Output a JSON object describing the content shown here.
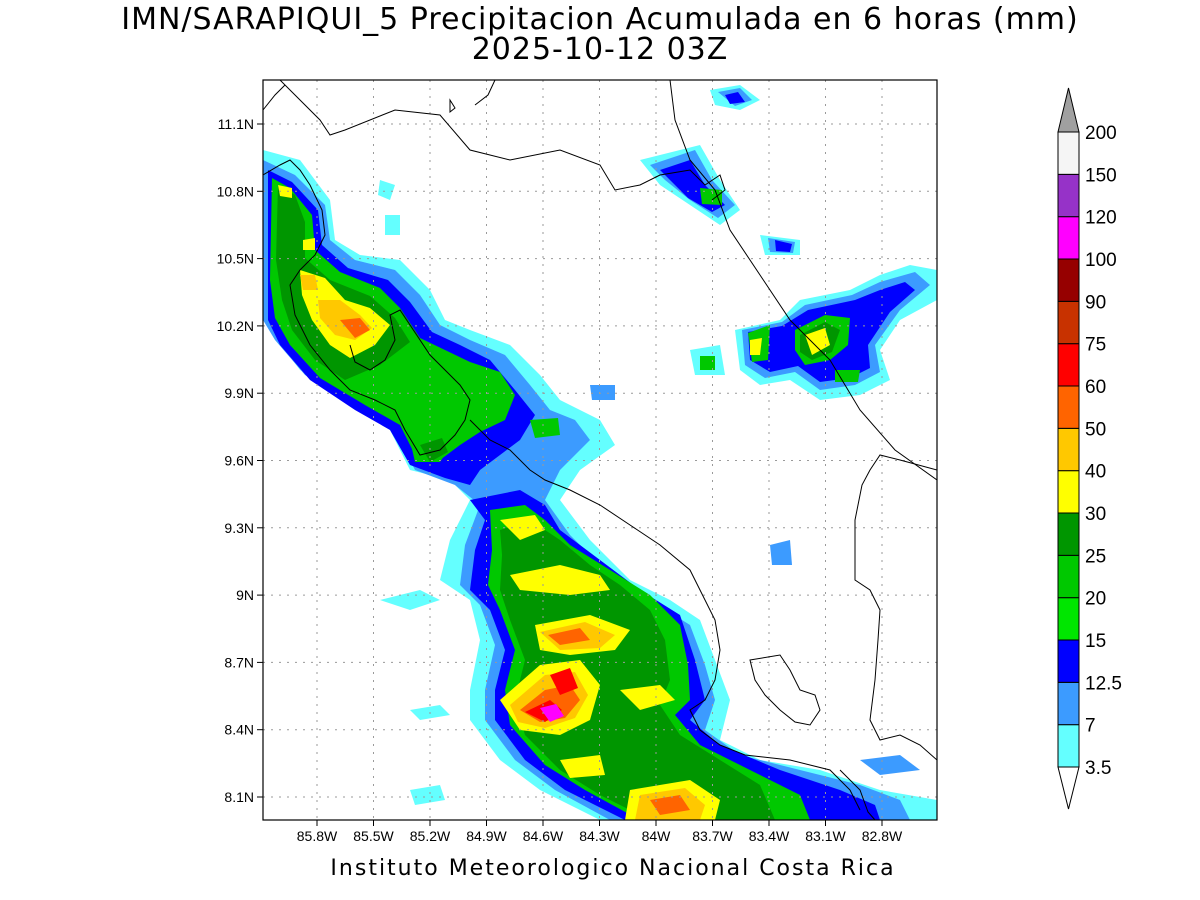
{
  "title": "IMN/SARAPIQUI_5 Precipitacion Acumulada en 6 horas (mm)",
  "subtitle": "2025-10-12 03Z",
  "credit": "Instituto Meteorologico Nacional Costa Rica",
  "map": {
    "lat_range": [
      8.0,
      11.3
    ],
    "lon_range": [
      -86.0,
      -83.0
    ],
    "lat_ticks": [
      {
        "value": 11.1,
        "label": "11.1N"
      },
      {
        "value": 10.8,
        "label": "10.8N"
      },
      {
        "value": 10.5,
        "label": "10.5N"
      },
      {
        "value": 10.2,
        "label": "10.2N"
      },
      {
        "value": 9.9,
        "label": "9.9N"
      },
      {
        "value": 9.6,
        "label": "9.6N"
      },
      {
        "value": 9.3,
        "label": "9.3N"
      },
      {
        "value": 9.0,
        "label": "9N"
      },
      {
        "value": 8.7,
        "label": "8.7N"
      },
      {
        "value": 8.4,
        "label": "8.4N"
      },
      {
        "value": 8.1,
        "label": "8.1N"
      }
    ],
    "lon_ticks": [
      {
        "value": -85.8,
        "label": "85.8W"
      },
      {
        "value": -85.5,
        "label": "85.5W"
      },
      {
        "value": -85.2,
        "label": "85.2W"
      },
      {
        "value": -84.9,
        "label": "84.9W"
      },
      {
        "value": -84.6,
        "label": "84.6W"
      },
      {
        "value": -84.3,
        "label": "84.3W"
      },
      {
        "value": -84.0,
        "label": "84W"
      },
      {
        "value": -83.7,
        "label": "83.7W"
      },
      {
        "value": -83.4,
        "label": "83.4W"
      },
      {
        "value": -83.1,
        "label": "83.1W"
      },
      {
        "value": -82.8,
        "label": "82.8W"
      }
    ]
  },
  "colorbar": {
    "levels": [
      {
        "label": "3.5",
        "color": "#64ffff"
      },
      {
        "label": "7",
        "color": "#3c9bff"
      },
      {
        "label": "12.5",
        "color": "#0000ff"
      },
      {
        "label": "15",
        "color": "#00e600"
      },
      {
        "label": "20",
        "color": "#00c800"
      },
      {
        "label": "25",
        "color": "#009600"
      },
      {
        "label": "30",
        "color": "#ffff00"
      },
      {
        "label": "40",
        "color": "#ffc800"
      },
      {
        "label": "50",
        "color": "#ff6400"
      },
      {
        "label": "60",
        "color": "#ff0000"
      },
      {
        "label": "75",
        "color": "#c83200"
      },
      {
        "label": "90",
        "color": "#960000"
      },
      {
        "label": "100",
        "color": "#ff00ff"
      },
      {
        "label": "120",
        "color": "#9632c8"
      },
      {
        "label": "150",
        "color": "#f5f5f5"
      },
      {
        "label": "200",
        "color": "#a0a0a0"
      }
    ]
  }
}
